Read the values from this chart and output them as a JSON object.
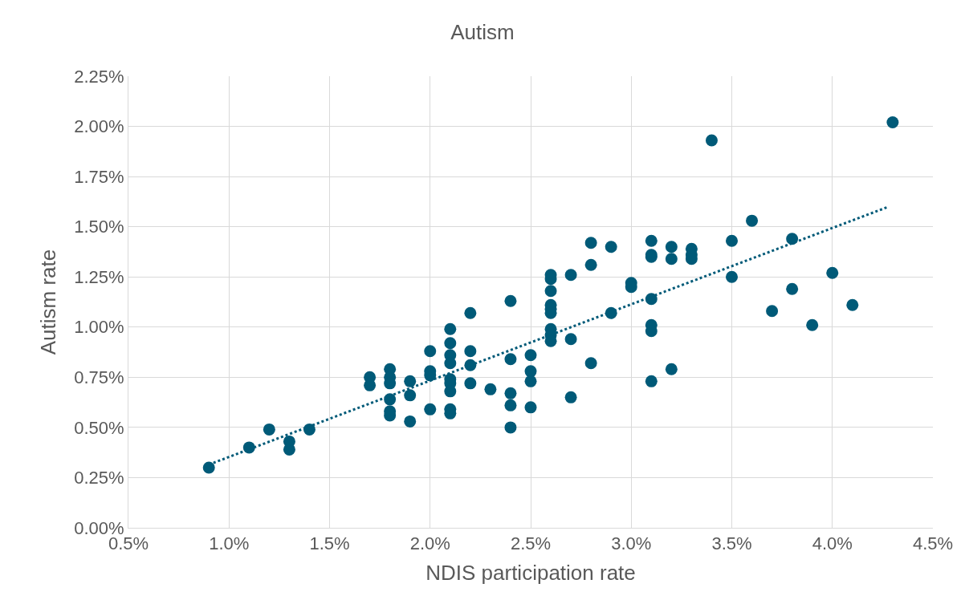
{
  "chart_data": {
    "type": "scatter",
    "title": "Autism",
    "xlabel": "NDIS participation rate",
    "ylabel": "Autism rate",
    "xlim": [
      0.5,
      4.5
    ],
    "ylim": [
      0,
      2.25
    ],
    "xticks": [
      {
        "value": 0.5,
        "label": "0.5%"
      },
      {
        "value": 1.0,
        "label": "1.0%"
      },
      {
        "value": 1.5,
        "label": "1.5%"
      },
      {
        "value": 2.0,
        "label": "2.0%"
      },
      {
        "value": 2.5,
        "label": "2.5%"
      },
      {
        "value": 3.0,
        "label": "3.0%"
      },
      {
        "value": 3.5,
        "label": "3.5%"
      },
      {
        "value": 4.0,
        "label": "4.0%"
      },
      {
        "value": 4.5,
        "label": "4.5%"
      }
    ],
    "yticks": [
      {
        "value": 0,
        "label": "0.00%"
      },
      {
        "value": 0.25,
        "label": "0.25%"
      },
      {
        "value": 0.5,
        "label": "0.50%"
      },
      {
        "value": 0.75,
        "label": "0.75%"
      },
      {
        "value": 1.0,
        "label": "1.00%"
      },
      {
        "value": 1.25,
        "label": "1.25%"
      },
      {
        "value": 1.5,
        "label": "1.50%"
      },
      {
        "value": 1.75,
        "label": "1.75%"
      },
      {
        "value": 2.0,
        "label": "2.00%"
      },
      {
        "value": 2.25,
        "label": "2.25%"
      }
    ],
    "grid": true,
    "marker": "circle",
    "series": [
      {
        "color": "#005a78",
        "x": [
          0.9,
          1.1,
          1.2,
          1.3,
          1.3,
          1.4,
          1.7,
          1.7,
          1.8,
          1.8,
          1.8,
          1.8,
          1.8,
          1.8,
          1.9,
          1.9,
          1.9,
          2.0,
          2.0,
          2.0,
          2.0,
          2.1,
          2.1,
          2.1,
          2.1,
          2.1,
          2.1,
          2.1,
          2.1,
          2.1,
          2.2,
          2.2,
          2.2,
          2.2,
          2.3,
          2.4,
          2.4,
          2.4,
          2.4,
          2.4,
          2.5,
          2.5,
          2.5,
          2.5,
          2.6,
          2.6,
          2.6,
          2.6,
          2.6,
          2.6,
          2.6,
          2.6,
          2.6,
          2.7,
          2.7,
          2.7,
          2.8,
          2.8,
          2.8,
          2.9,
          2.9,
          3.0,
          3.0,
          3.1,
          3.1,
          3.1,
          3.1,
          3.1,
          3.1,
          3.1,
          3.2,
          3.2,
          3.2,
          3.3,
          3.3,
          3.3,
          3.4,
          3.5,
          3.5,
          3.6,
          3.7,
          3.8,
          3.8,
          3.9,
          4.0,
          4.1,
          4.3
        ],
        "values": [
          0.3,
          0.4,
          0.49,
          0.43,
          0.39,
          0.49,
          0.75,
          0.71,
          0.79,
          0.75,
          0.72,
          0.64,
          0.58,
          0.56,
          0.73,
          0.66,
          0.53,
          0.88,
          0.78,
          0.76,
          0.59,
          0.99,
          0.92,
          0.86,
          0.82,
          0.74,
          0.72,
          0.68,
          0.59,
          0.57,
          1.07,
          0.88,
          0.81,
          0.72,
          0.69,
          1.13,
          0.84,
          0.67,
          0.61,
          0.5,
          0.86,
          0.78,
          0.73,
          0.6,
          1.26,
          1.24,
          1.18,
          1.11,
          1.09,
          1.07,
          0.99,
          0.96,
          0.93,
          1.26,
          0.94,
          0.65,
          1.42,
          1.31,
          0.82,
          1.4,
          1.07,
          1.22,
          1.2,
          1.43,
          1.36,
          1.35,
          1.14,
          1.01,
          0.98,
          0.73,
          1.4,
          1.34,
          0.79,
          1.39,
          1.36,
          1.34,
          1.93,
          1.43,
          1.25,
          1.53,
          1.08,
          1.44,
          1.19,
          1.01,
          1.27,
          1.11,
          2.02
        ]
      },
      {
        "type": "line",
        "color": "#005a78",
        "line_style": "dotted",
        "marker": "none",
        "x": [
          0.9,
          4.28
        ],
        "values": [
          0.315,
          1.6
        ]
      }
    ]
  }
}
